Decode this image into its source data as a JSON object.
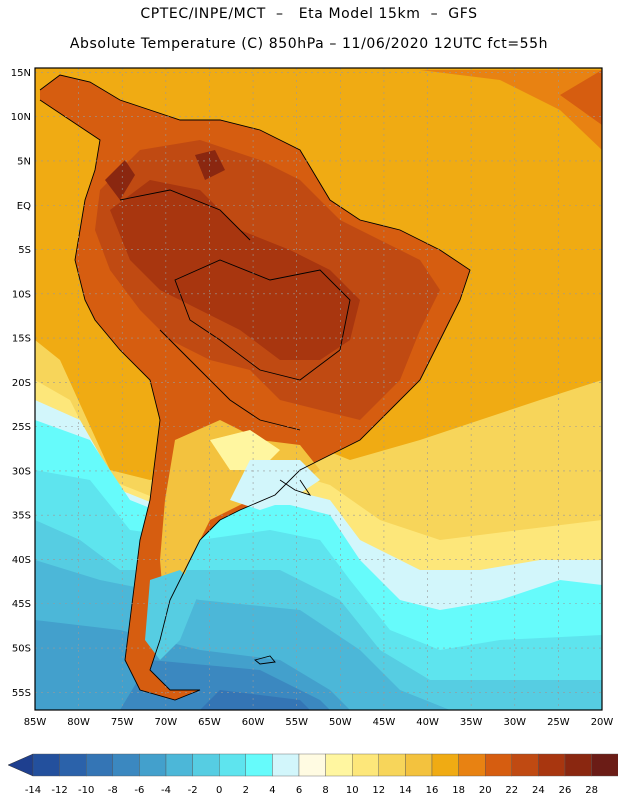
{
  "header": {
    "line1": "CPTEC/INPE/MCT  –   Eta Model 15km  –  GFS",
    "line2": "Absolute Temperature (C) 850hPa – 11/06/2020 12UTC fct=55h"
  },
  "map": {
    "lat_labels": [
      "15N",
      "10N",
      "5N",
      "EQ",
      "5S",
      "10S",
      "15S",
      "20S",
      "25S",
      "30S",
      "35S",
      "40S",
      "45S",
      "50S",
      "55S"
    ],
    "lon_labels": [
      "85W",
      "80W",
      "75W",
      "70W",
      "65W",
      "60W",
      "55W",
      "50W",
      "45W",
      "40W",
      "35W",
      "30W",
      "25W",
      "20W"
    ],
    "lat_range": [
      15.5,
      -57.0
    ],
    "lon_range": [
      -85.0,
      -20.0
    ]
  },
  "colorbar": {
    "tick_labels": [
      "-14",
      "-12",
      "-10",
      "-8",
      "-6",
      "-4",
      "-2",
      "0",
      "2",
      "4",
      "6",
      "8",
      "10",
      "12",
      "14",
      "16",
      "18",
      "20",
      "22",
      "24",
      "26",
      "28"
    ],
    "colors": [
      "#1e3f8f",
      "#23509d",
      "#2b62aa",
      "#3475b5",
      "#3b88c0",
      "#43a0cc",
      "#4cb7d8",
      "#56cde2",
      "#5ee4ee",
      "#66fbfb",
      "#d2f6fb",
      "#fffbe2",
      "#fff6a0",
      "#fde77a",
      "#f7d55a",
      "#f3c23e",
      "#f0ab13",
      "#e88212",
      "#d65d10",
      "#c04a12",
      "#a8360f",
      "#8a2710",
      "#6b1c16",
      "#7a0d2a"
    ]
  }
}
